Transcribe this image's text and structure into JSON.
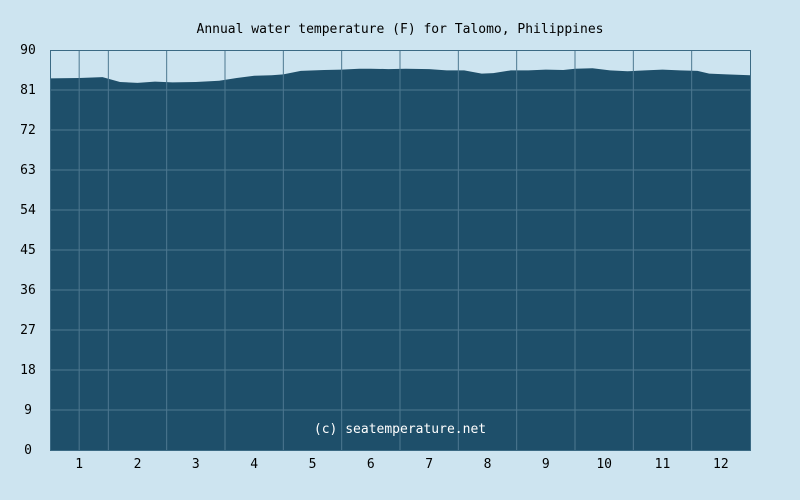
{
  "colors": {
    "background": "#cde4f0",
    "plot_fill": "#1e4f6a",
    "grid": "#4d7890",
    "axis": "#3b6a84",
    "text": "#000000",
    "watermark": "#ffffff"
  },
  "watermark": "(c) seatemperature.net",
  "chart_data": {
    "type": "area",
    "title": "Annual water temperature (F) for Talomo, Philippines",
    "xlabel": "",
    "ylabel": "",
    "ylim": [
      0,
      90
    ],
    "yticks": [
      0,
      9,
      18,
      27,
      36,
      45,
      54,
      63,
      72,
      81,
      90
    ],
    "xlim": [
      0.5,
      12.5
    ],
    "xticks": [
      1,
      2,
      3,
      4,
      5,
      6,
      7,
      8,
      9,
      10,
      11,
      12
    ],
    "grid": true,
    "legend": "none",
    "series": [
      {
        "x": [
          0.5,
          1.0,
          1.4,
          1.7,
          2.0,
          2.3,
          2.6,
          3.0,
          3.4,
          3.7,
          4.0,
          4.3,
          4.5,
          4.8,
          5.2,
          5.5,
          5.8,
          6.0,
          6.3,
          6.6,
          7.0,
          7.3,
          7.6,
          7.9,
          8.1,
          8.4,
          8.7,
          9.0,
          9.3,
          9.5,
          9.8,
          10.1,
          10.4,
          10.7,
          11.0,
          11.3,
          11.6,
          11.8,
          12.1,
          12.5
        ],
        "values": [
          83.6,
          83.7,
          83.9,
          82.8,
          82.6,
          82.9,
          82.7,
          82.8,
          83.1,
          83.7,
          84.2,
          84.3,
          84.5,
          85.3,
          85.5,
          85.6,
          85.8,
          85.8,
          85.7,
          85.8,
          85.7,
          85.4,
          85.4,
          84.7,
          84.8,
          85.4,
          85.4,
          85.6,
          85.5,
          85.8,
          85.9,
          85.4,
          85.2,
          85.4,
          85.6,
          85.4,
          85.3,
          84.7,
          84.5,
          84.3
        ]
      }
    ]
  }
}
